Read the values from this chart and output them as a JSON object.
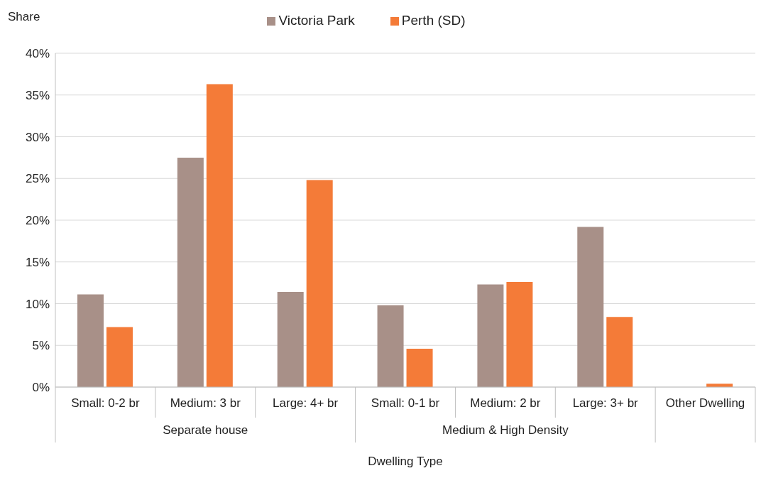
{
  "chart_data": {
    "type": "bar",
    "ylabel": "Share",
    "xlabel": "Dwelling Type",
    "categories": [
      "Small: 0-2 br",
      "Medium: 3 br",
      "Large: 4+ br",
      "Small: 0-1 br",
      "Medium: 2 br",
      "Large: 3+ br",
      "Other Dwelling"
    ],
    "series": [
      {
        "name": "Victoria Park",
        "color": "#a89088",
        "values": [
          11.1,
          27.5,
          11.4,
          9.8,
          12.3,
          19.2,
          0
        ]
      },
      {
        "name": "Perth (SD)",
        "color": "#f47b38",
        "values": [
          7.2,
          36.3,
          24.8,
          4.6,
          12.6,
          8.4,
          0.4
        ]
      }
    ],
    "ylim": [
      0,
      40
    ],
    "yticks": [
      {
        "value": 0,
        "label": "0%"
      },
      {
        "value": 5,
        "label": "5%"
      },
      {
        "value": 10,
        "label": "10%"
      },
      {
        "value": 15,
        "label": "15%"
      },
      {
        "value": 20,
        "label": "20%"
      },
      {
        "value": 25,
        "label": "25%"
      },
      {
        "value": 30,
        "label": "30%"
      },
      {
        "value": 35,
        "label": "35%"
      },
      {
        "value": 40,
        "label": "40%"
      }
    ],
    "grid": "y",
    "legend": "top",
    "annotations": [
      "Separate house",
      "Medium & High Density"
    ]
  }
}
